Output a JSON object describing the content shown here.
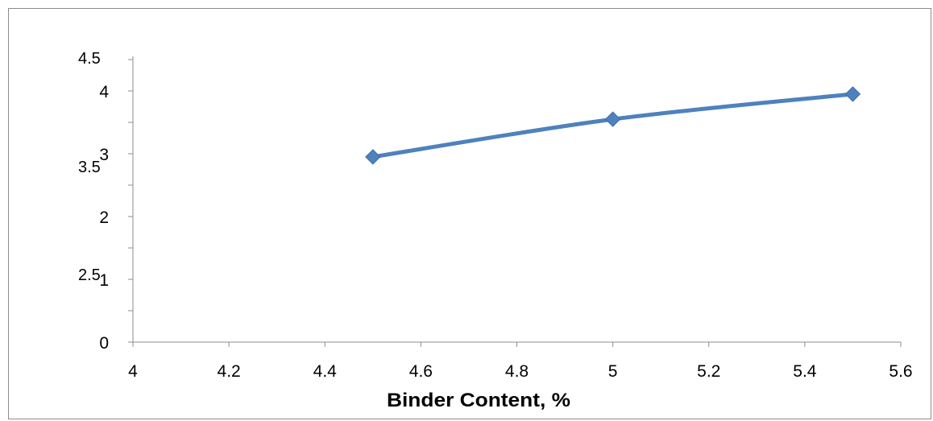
{
  "chart_data": {
    "type": "line",
    "title": "",
    "xlabel": "Binder Content, %",
    "ylabel": "",
    "x": [
      4.5,
      5.0,
      5.5
    ],
    "series": [
      {
        "values": [
          2.95,
          3.55,
          3.95
        ],
        "color": "#4f81bd"
      }
    ],
    "xlim": [
      4,
      5.6
    ],
    "ylim": [
      0,
      4.4
    ],
    "x_ticks": [
      "4",
      "4.2",
      "4.4",
      "4.6",
      "4.8",
      "5",
      "5.2",
      "5.4",
      "5.6"
    ],
    "y_ticks_primary": [
      "0",
      "1",
      "2",
      "3",
      "4"
    ],
    "y_ticks_overlap": [
      "2.5",
      "3.5",
      "4.5"
    ],
    "grid": false,
    "marker": "diamond"
  }
}
